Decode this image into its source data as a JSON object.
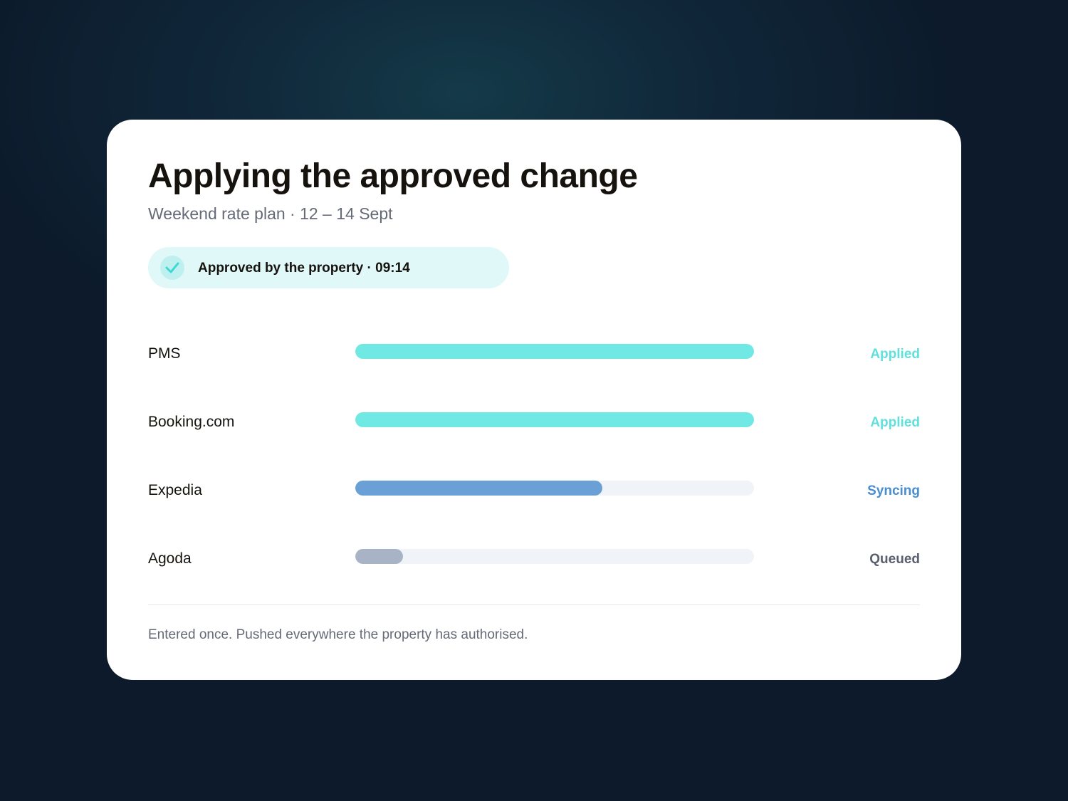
{
  "header": {
    "title": "Applying the approved change",
    "subtitle": "Weekend rate plan · 12 – 14 Sept"
  },
  "badge": {
    "text": "Approved by the property · 09:14"
  },
  "rows": [
    {
      "name": "PMS",
      "progress": 100,
      "status": "Applied",
      "bar_color": "#70e8e4",
      "status_color": "#5fe0dc"
    },
    {
      "name": "Booking.com",
      "progress": 100,
      "status": "Applied",
      "bar_color": "#70e8e4",
      "status_color": "#5fe0dc"
    },
    {
      "name": "Expedia",
      "progress": 62,
      "status": "Syncing",
      "bar_color": "#6aa0d6",
      "status_color": "#4a8ed0"
    },
    {
      "name": "Agoda",
      "progress": 12,
      "status": "Queued",
      "bar_color": "#a9b3c6",
      "status_color": "#5a5f6e"
    }
  ],
  "footer": {
    "text": "Entered once. Pushed everywhere the property has authorised."
  }
}
